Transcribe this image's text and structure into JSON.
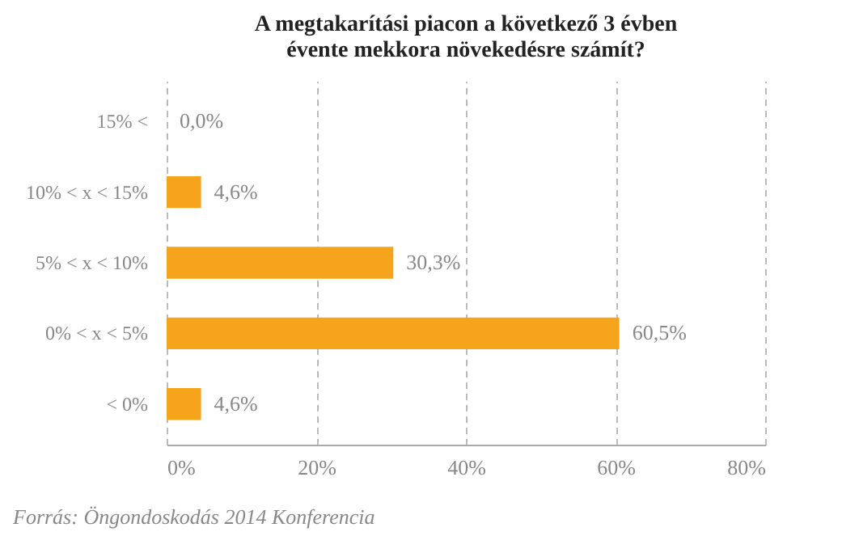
{
  "chart_data": {
    "type": "bar",
    "orientation": "horizontal",
    "title": "A megtakarítási piacon a következő 3 évben évente mekkora növekedésre számít?",
    "categories": [
      "15% <",
      "10% < x < 15%",
      "5% < x < 10%",
      "0% < x < 5%",
      "< 0%"
    ],
    "values": [
      0.0,
      4.6,
      30.3,
      60.5,
      4.6
    ],
    "value_labels": [
      "0,0%",
      "4,6%",
      "30,3%",
      "60,5%",
      "4,6%"
    ],
    "color": "#f7a41d",
    "xlim": [
      0,
      80
    ],
    "xticks": [
      {
        "value": 0,
        "label": "0%"
      },
      {
        "value": 20,
        "label": "20%"
      },
      {
        "value": 40,
        "label": "40%"
      },
      {
        "value": 60,
        "label": "60%"
      },
      {
        "value": 80,
        "label": "80%"
      }
    ],
    "grid": "x",
    "annotations": [
      "Forrás: Öngondoskodás 2014 Konferencia"
    ]
  }
}
